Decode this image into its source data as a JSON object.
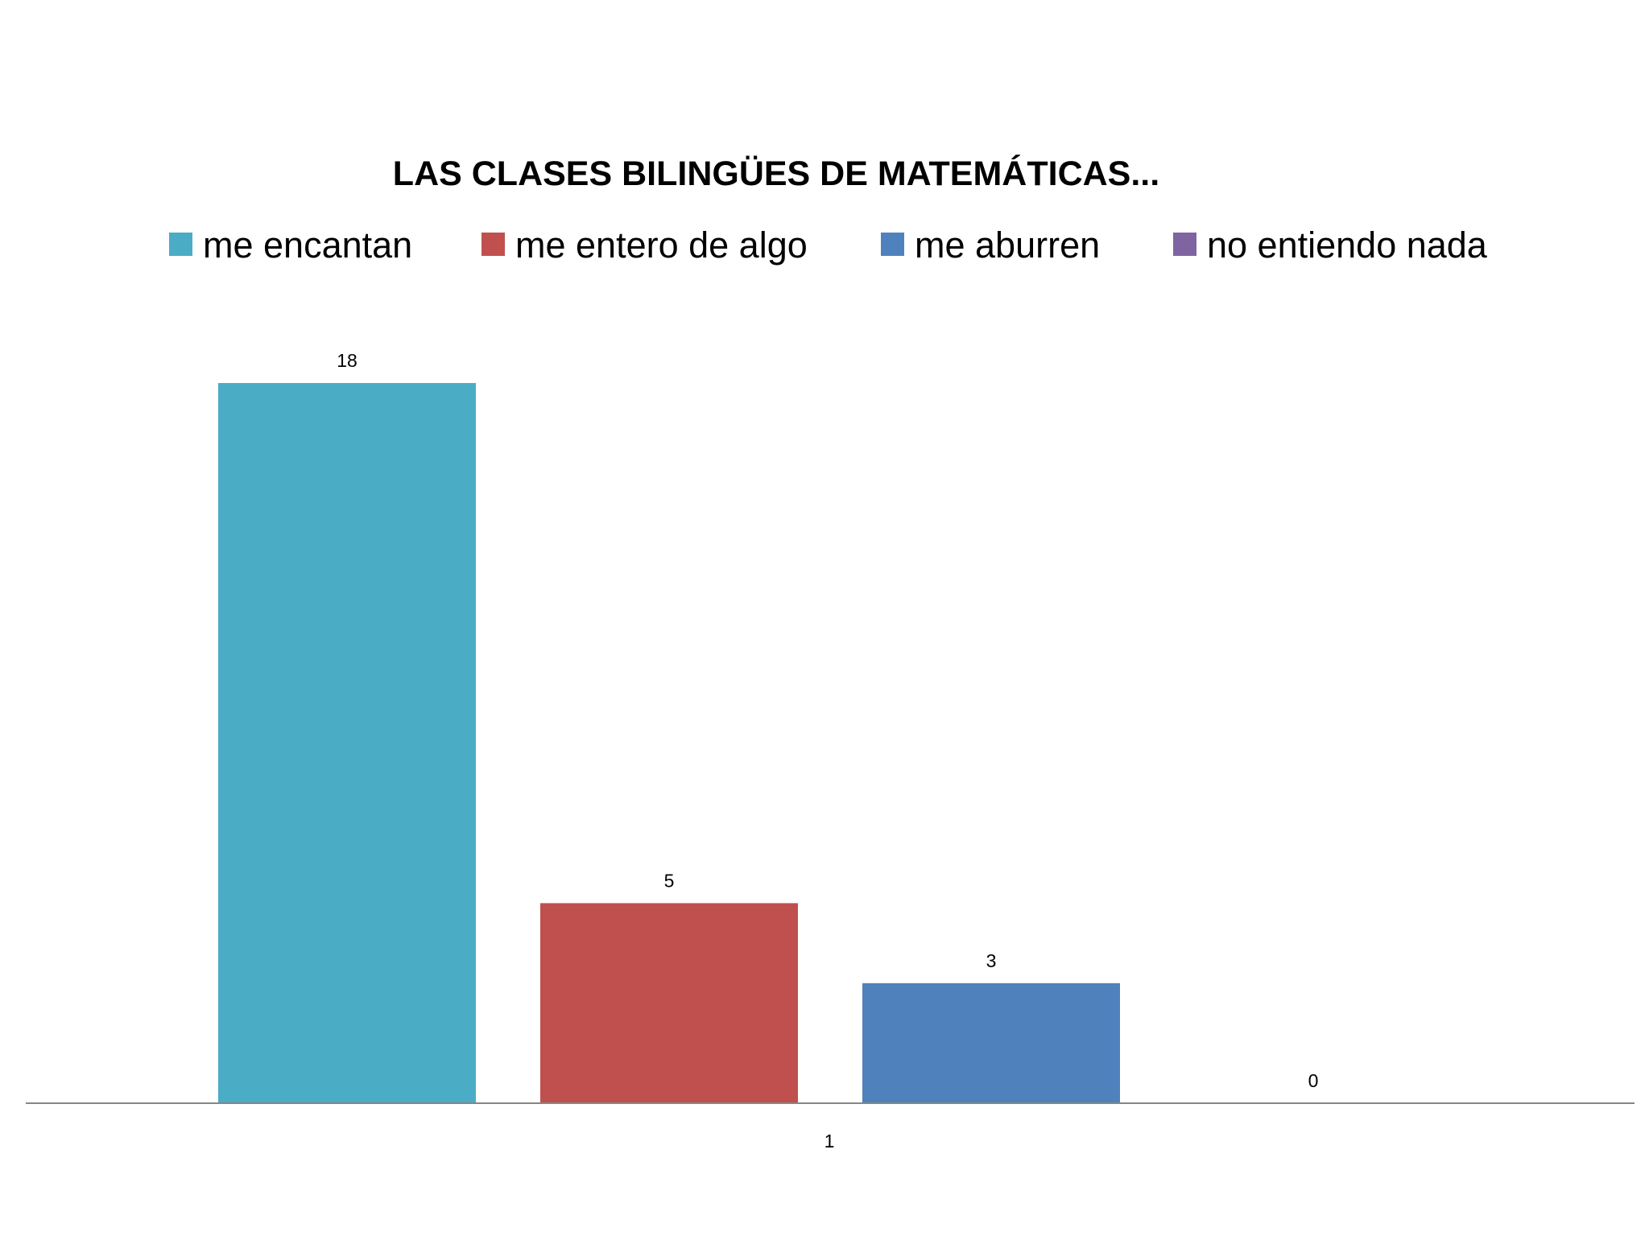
{
  "chart_data": {
    "type": "bar",
    "title": "LAS CLASES BILINGÜES DE MATEMÁTICAS...",
    "categories": [
      "1"
    ],
    "series": [
      {
        "name": "me encantan",
        "values": [
          18
        ],
        "color": "#4BACC6"
      },
      {
        "name": "me entero de algo",
        "values": [
          5
        ],
        "color": "#C0504D"
      },
      {
        "name": "me aburren",
        "values": [
          3
        ],
        "color": "#4F81BD"
      },
      {
        "name": "no entiendo nada",
        "values": [
          0
        ],
        "color": "#8064A2"
      }
    ],
    "xlabel": "",
    "ylabel": "",
    "ylim": [
      0,
      18
    ],
    "grid": false,
    "legend_position": "top",
    "data_labels": true,
    "y_axis_visible": false
  }
}
